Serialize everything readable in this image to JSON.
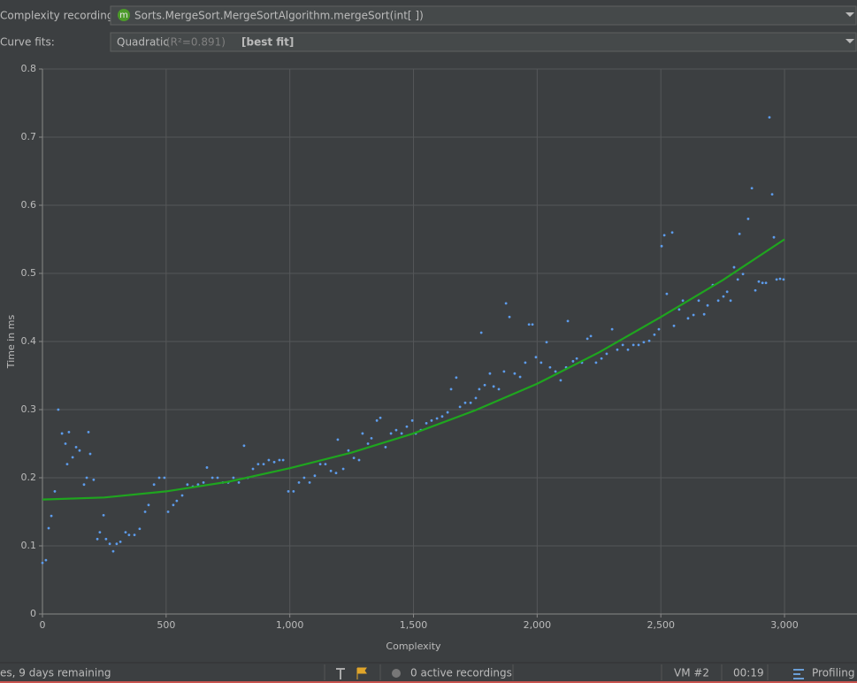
{
  "header": {
    "recording_label": "Complexity recording:",
    "icon": "m",
    "recording_value": "Sorts.MergeSort.MergeSortAlgorithm.mergeSort(int[ ])",
    "fits_label": "Curve fits:",
    "fit_name": "Quadratic",
    "fit_r2": "(R²=0.891)",
    "fit_best": "[best fit]"
  },
  "status": {
    "license": "es, 9 days remaining",
    "recordings": "0 active recordings",
    "vm": "VM #2",
    "time": "00:19",
    "mode": "Profiling"
  },
  "chart_data": {
    "type": "scatter",
    "xlabel": "Complexity",
    "ylabel": "Time in ms",
    "xlim": [
      0,
      3293
    ],
    "ylim": [
      0,
      0.8
    ],
    "grid": true,
    "xticks": [
      0,
      500,
      {
        "value": 1000,
        "label": "1,000"
      },
      {
        "value": 1500,
        "label": "1,500"
      },
      {
        "value": 2000,
        "label": "2,000"
      },
      {
        "value": 2500,
        "label": "2,500"
      },
      {
        "value": 3000,
        "label": "3,000"
      }
    ],
    "yticks": [
      0,
      0.1,
      0.2,
      0.3,
      0.4,
      0.5,
      0.6,
      0.7,
      0.8
    ],
    "series": [
      {
        "type": "scatter",
        "color": "#5d9cec",
        "x": [
          0,
          14,
          25,
          36,
          50,
          64,
          79,
          93,
          100,
          107,
          122,
          136,
          150,
          168,
          179,
          186,
          193,
          207,
          222,
          232,
          247,
          257,
          272,
          286,
          300,
          315,
          336,
          350,
          372,
          393,
          415,
          429,
          451,
          472,
          493,
          508,
          529,
          543,
          565,
          586,
          608,
          629,
          651,
          665,
          687,
          708,
          729,
          751,
          772,
          794,
          815,
          830,
          851,
          872,
          894,
          915,
          937,
          958,
          973,
          994,
          1015,
          1037,
          1058,
          1080,
          1101,
          1123,
          1144,
          1166,
          1187,
          1194,
          1216,
          1237,
          1259,
          1280,
          1294,
          1316,
          1330,
          1352,
          1366,
          1387,
          1409,
          1430,
          1452,
          1473,
          1495,
          1509,
          1530,
          1552,
          1573,
          1595,
          1616,
          1638,
          1652,
          1673,
          1688,
          1709,
          1731,
          1752,
          1766,
          1774,
          1788,
          1809,
          1824,
          1845,
          1866,
          1874,
          1888,
          1909,
          1931,
          1952,
          1967,
          1981,
          1995,
          2016,
          2038,
          2052,
          2074,
          2095,
          2117,
          2124,
          2145,
          2160,
          2181,
          2203,
          2217,
          2238,
          2260,
          2281,
          2303,
          2324,
          2346,
          2367,
          2389,
          2410,
          2431,
          2453,
          2474,
          2492,
          2503,
          2514,
          2524,
          2546,
          2553,
          2574,
          2589,
          2610,
          2632,
          2653,
          2675,
          2689,
          2710,
          2732,
          2753,
          2768,
          2782,
          2796,
          2811,
          2818,
          2832,
          2853,
          2868,
          2882,
          2896,
          2911,
          2925,
          2939,
          2950,
          2957,
          2968,
          2982,
          2996
        ],
        "values": [
          0.075,
          0.079,
          0.126,
          0.144,
          0.18,
          0.3,
          0.265,
          0.25,
          0.22,
          0.267,
          0.23,
          0.245,
          0.24,
          0.19,
          0.2,
          0.267,
          0.235,
          0.197,
          0.11,
          0.12,
          0.145,
          0.11,
          0.103,
          0.092,
          0.103,
          0.106,
          0.12,
          0.116,
          0.116,
          0.125,
          0.15,
          0.16,
          0.19,
          0.2,
          0.2,
          0.15,
          0.16,
          0.166,
          0.174,
          0.19,
          0.187,
          0.19,
          0.193,
          0.215,
          0.2,
          0.2,
          0.193,
          0.193,
          0.2,
          0.193,
          0.247,
          0.2,
          0.213,
          0.22,
          0.22,
          0.226,
          0.223,
          0.226,
          0.226,
          0.18,
          0.18,
          0.193,
          0.2,
          0.193,
          0.203,
          0.22,
          0.22,
          0.21,
          0.207,
          0.256,
          0.213,
          0.24,
          0.229,
          0.226,
          0.265,
          0.25,
          0.258,
          0.284,
          0.288,
          0.245,
          0.265,
          0.27,
          0.265,
          0.275,
          0.284,
          0.265,
          0.27,
          0.28,
          0.284,
          0.287,
          0.29,
          0.296,
          0.33,
          0.347,
          0.304,
          0.31,
          0.31,
          0.317,
          0.33,
          0.413,
          0.336,
          0.353,
          0.334,
          0.33,
          0.356,
          0.456,
          0.436,
          0.353,
          0.348,
          0.369,
          0.425,
          0.425,
          0.377,
          0.369,
          0.399,
          0.362,
          0.356,
          0.343,
          0.362,
          0.43,
          0.371,
          0.375,
          0.369,
          0.404,
          0.408,
          0.369,
          0.375,
          0.382,
          0.418,
          0.388,
          0.395,
          0.388,
          0.395,
          0.395,
          0.399,
          0.401,
          0.41,
          0.418,
          0.54,
          0.556,
          0.47,
          0.56,
          0.423,
          0.447,
          0.46,
          0.434,
          0.439,
          0.46,
          0.44,
          0.453,
          0.483,
          0.46,
          0.466,
          0.473,
          0.46,
          0.509,
          0.491,
          0.558,
          0.499,
          0.58,
          0.625,
          0.475,
          0.488,
          0.486,
          0.486,
          0.729,
          0.616,
          0.553,
          0.491,
          0.492,
          0.491
        ]
      },
      {
        "type": "line",
        "color": "#1fa51f",
        "x": [
          0,
          250,
          500,
          750,
          1000,
          1250,
          1500,
          1750,
          2000,
          2250,
          2500,
          2750,
          3000
        ],
        "values": [
          0.168,
          0.171,
          0.18,
          0.194,
          0.214,
          0.237,
          0.265,
          0.299,
          0.338,
          0.384,
          0.436,
          0.49,
          0.55
        ]
      }
    ]
  }
}
